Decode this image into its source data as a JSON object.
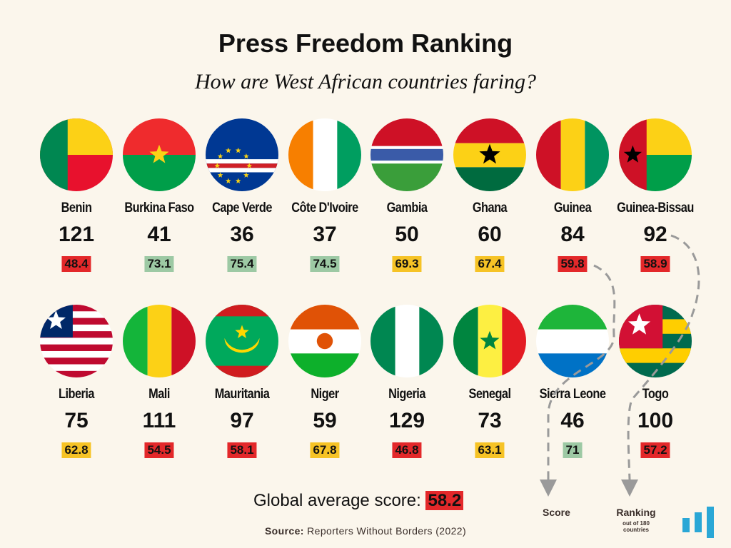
{
  "title": "Press Freedom Ranking",
  "subtitle": "How are West African countries faring?",
  "countries": [
    {
      "name": "Benin",
      "rank": "121",
      "score": "48.4",
      "score_color": "#e3282a",
      "flag": "benin-flag-icon"
    },
    {
      "name": "Burkina Faso",
      "rank": "41",
      "score": "73.1",
      "score_color": "#9dc9a4",
      "flag": "burkina-faso-flag-icon"
    },
    {
      "name": "Cape Verde",
      "rank": "36",
      "score": "75.4",
      "score_color": "#9dc9a4",
      "flag": "cape-verde-flag-icon"
    },
    {
      "name": "Côte D'Ivoire",
      "rank": "37",
      "score": "74.5",
      "score_color": "#9dc9a4",
      "flag": "cote-divoire-flag-icon"
    },
    {
      "name": "Gambia",
      "rank": "50",
      "score": "69.3",
      "score_color": "#f6c326",
      "flag": "gambia-flag-icon"
    },
    {
      "name": "Ghana",
      "rank": "60",
      "score": "67.4",
      "score_color": "#f6c326",
      "flag": "ghana-flag-icon"
    },
    {
      "name": "Guinea",
      "rank": "84",
      "score": "59.8",
      "score_color": "#e3282a",
      "flag": "guinea-flag-icon"
    },
    {
      "name": "Guinea-Bissau",
      "rank": "92",
      "score": "58.9",
      "score_color": "#e3282a",
      "flag": "guinea-bissau-flag-icon"
    },
    {
      "name": "Liberia",
      "rank": "75",
      "score": "62.8",
      "score_color": "#f6c326",
      "flag": "liberia-flag-icon"
    },
    {
      "name": "Mali",
      "rank": "111",
      "score": "54.5",
      "score_color": "#e3282a",
      "flag": "mali-flag-icon"
    },
    {
      "name": "Mauritania",
      "rank": "97",
      "score": "58.1",
      "score_color": "#e3282a",
      "flag": "mauritania-flag-icon"
    },
    {
      "name": "Niger",
      "rank": "59",
      "score": "67.8",
      "score_color": "#f6c326",
      "flag": "niger-flag-icon"
    },
    {
      "name": "Nigeria",
      "rank": "129",
      "score": "46.8",
      "score_color": "#e3282a",
      "flag": "nigeria-flag-icon"
    },
    {
      "name": "Senegal",
      "rank": "73",
      "score": "63.1",
      "score_color": "#f6c326",
      "flag": "senegal-flag-icon"
    },
    {
      "name": "Sierra Leone",
      "rank": "46",
      "score": "71",
      "score_color": "#9dc9a4",
      "flag": "sierra-leone-flag-icon"
    },
    {
      "name": "Togo",
      "rank": "100",
      "score": "57.2",
      "score_color": "#e3282a",
      "flag": "togo-flag-icon"
    }
  ],
  "global": {
    "label": "Global average score:",
    "value": "58.2",
    "value_color": "#e3282a"
  },
  "source": {
    "label": "Source:",
    "text": "Reporters Without Borders (2022)"
  },
  "legend": {
    "score_label": "Score",
    "ranking_label": "Ranking",
    "ranking_sub1": "out of 180",
    "ranking_sub2": "countries"
  },
  "colors": {
    "background": "#fbf6ec",
    "red": "#e3282a",
    "yellow": "#f6c326",
    "green": "#9dc9a4",
    "logo": "#2aa7d6"
  }
}
